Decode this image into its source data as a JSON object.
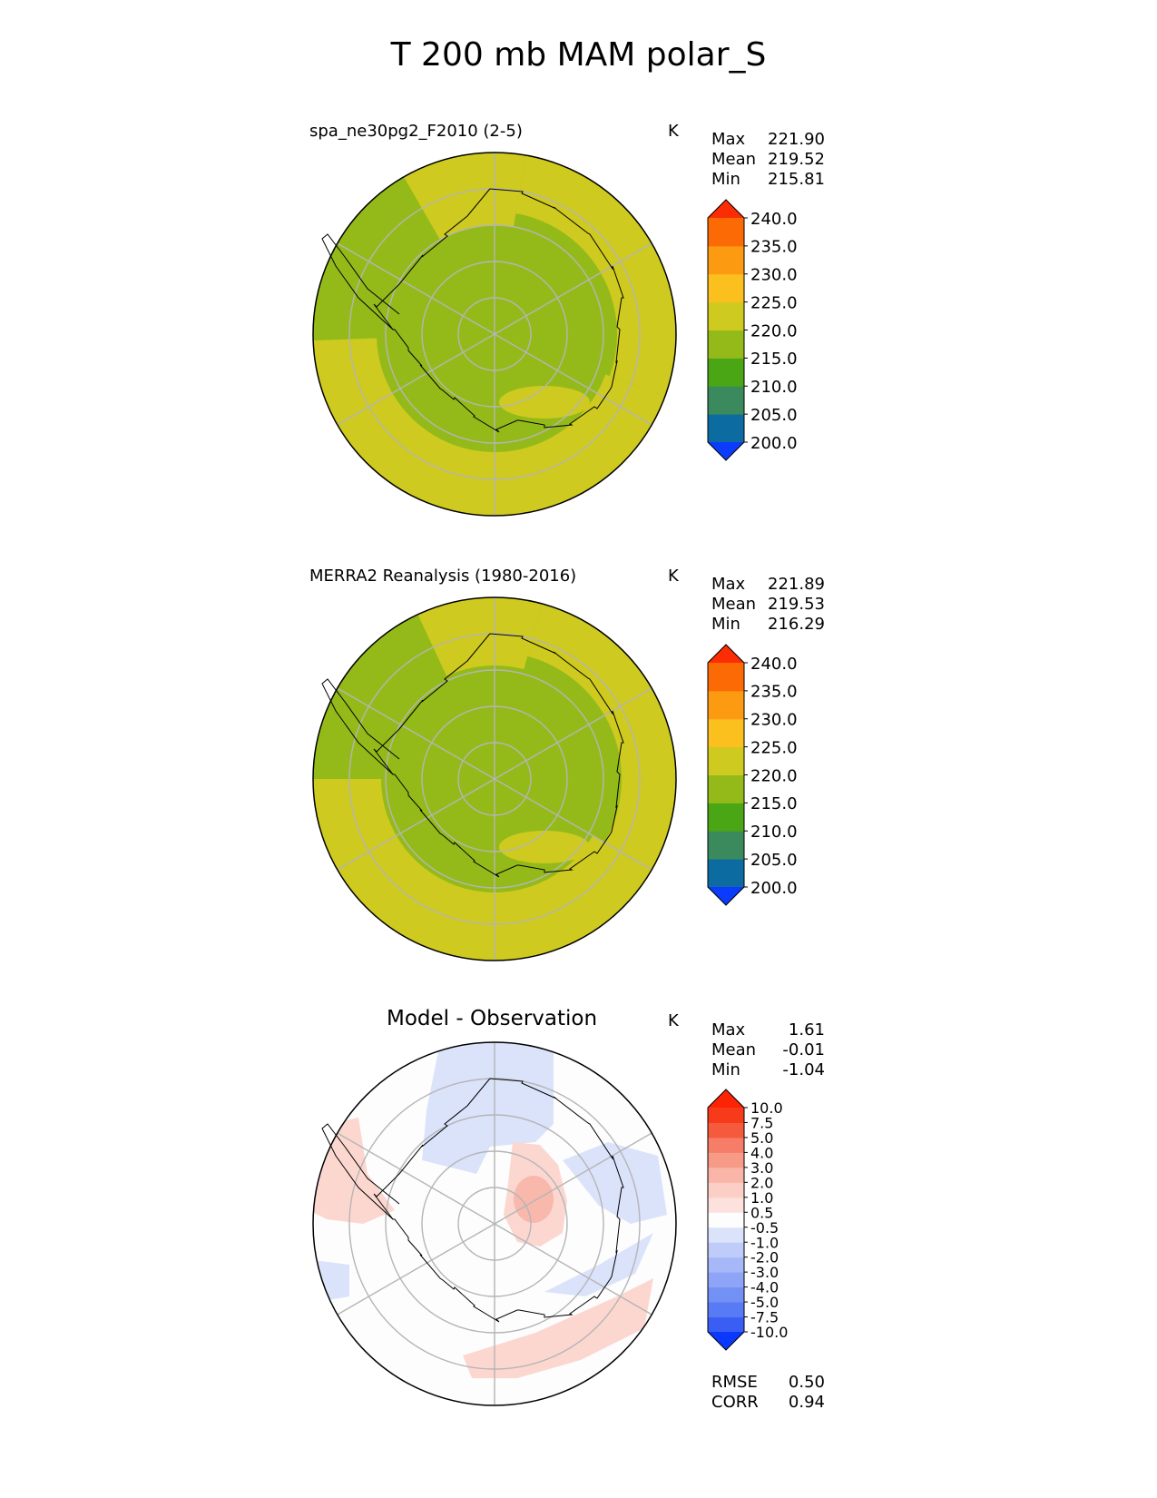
{
  "title": "T 200 mb MAM polar_S",
  "panels": [
    {
      "title": "spa_ne30pg2_F2010 (2-5)",
      "units": "K",
      "stats": [
        {
          "label": "Max",
          "value": "221.90"
        },
        {
          "label": "Mean",
          "value": "219.52"
        },
        {
          "label": "Min",
          "value": "215.81"
        }
      ]
    },
    {
      "title": "MERRA2 Reanalysis (1980-2016)",
      "units": "K",
      "stats": [
        {
          "label": "Max",
          "value": "221.89"
        },
        {
          "label": "Mean",
          "value": "219.53"
        },
        {
          "label": "Min",
          "value": "216.29"
        }
      ]
    },
    {
      "title": "Model - Observation",
      "units": "K",
      "stats": [
        {
          "label": "Max",
          "value": "1.61"
        },
        {
          "label": "Mean",
          "value": "-0.01"
        },
        {
          "label": "Min",
          "value": "-1.04"
        }
      ],
      "metrics": [
        {
          "label": "RMSE",
          "value": "0.50"
        },
        {
          "label": "CORR",
          "value": "0.94"
        }
      ]
    }
  ],
  "colors": {
    "green_low": "#94ba1a",
    "yellow_high": "#cfca1f",
    "diff_pos": "#fcd7d0",
    "diff_pos2": "#f8b8ac",
    "diff_neg": "#dbe3fb",
    "grid": "#b5b5b5"
  },
  "chart_data": [
    {
      "type": "heatmap",
      "projection": "south polar stereographic",
      "title": "spa_ne30pg2_F2010 (2-5)",
      "units": "K",
      "field_summary": {
        "max": 221.9,
        "mean": 219.52,
        "min": 215.81
      },
      "colorbar": {
        "levels": [
          200.0,
          205.0,
          210.0,
          215.0,
          220.0,
          225.0,
          230.0,
          235.0,
          240.0
        ],
        "tick_labels": [
          "200.0",
          "205.0",
          "210.0",
          "215.0",
          "220.0",
          "225.0",
          "230.0",
          "235.0",
          "240.0"
        ],
        "colors": [
          "#0b3cfc",
          "#0c6ba0",
          "#3a8a5e",
          "#4aa614",
          "#94ba1a",
          "#cfca1f",
          "#fcc01e",
          "#fc9a12",
          "#fc6a06",
          "#fc2c04"
        ],
        "extend": "both"
      }
    },
    {
      "type": "heatmap",
      "projection": "south polar stereographic",
      "title": "MERRA2 Reanalysis (1980-2016)",
      "units": "K",
      "field_summary": {
        "max": 221.89,
        "mean": 219.53,
        "min": 216.29
      },
      "colorbar": {
        "levels": [
          200.0,
          205.0,
          210.0,
          215.0,
          220.0,
          225.0,
          230.0,
          235.0,
          240.0
        ],
        "tick_labels": [
          "200.0",
          "205.0",
          "210.0",
          "215.0",
          "220.0",
          "225.0",
          "230.0",
          "235.0",
          "240.0"
        ],
        "colors": [
          "#0b3cfc",
          "#0c6ba0",
          "#3a8a5e",
          "#4aa614",
          "#94ba1a",
          "#cfca1f",
          "#fcc01e",
          "#fc9a12",
          "#fc6a06",
          "#fc2c04"
        ],
        "extend": "both"
      }
    },
    {
      "type": "heatmap",
      "projection": "south polar stereographic",
      "title": "Model - Observation",
      "units": "K",
      "field_summary": {
        "max": 1.61,
        "mean": -0.01,
        "min": -1.04,
        "rmse": 0.5,
        "corr": 0.94
      },
      "colorbar": {
        "levels": [
          -10.0,
          -7.5,
          -5.0,
          -4.0,
          -3.0,
          -2.0,
          -1.0,
          -0.5,
          0.5,
          1.0,
          2.0,
          3.0,
          4.0,
          5.0,
          7.5,
          10.0
        ],
        "tick_labels": [
          "-10.0",
          "-7.5",
          "-5.0",
          "-4.0",
          "-3.0",
          "-2.0",
          "-1.0",
          "-0.5",
          "0.5",
          "1.0",
          "2.0",
          "3.0",
          "4.0",
          "5.0",
          "7.5",
          "10.0"
        ],
        "colors": [
          "#0a38fc",
          "#3a5ef4",
          "#587af4",
          "#7390f4",
          "#8ea4f6",
          "#a6b8f8",
          "#bfcbf9",
          "#dbe3fb",
          "#fdfdfd",
          "#fce1dc",
          "#fbcfc6",
          "#f9b5a8",
          "#f89a88",
          "#f67e68",
          "#f55a3c",
          "#f63a1a",
          "#fc2404"
        ],
        "extend": "both"
      }
    }
  ]
}
